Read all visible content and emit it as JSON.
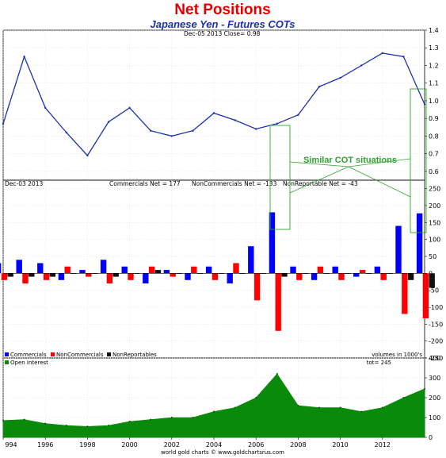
{
  "chart_data": {
    "type": "line",
    "title": "Net Positions",
    "subtitle": "Japanese Yen - Futures COTs",
    "x": [
      1994,
      1995,
      1996,
      1997,
      1998,
      1999,
      2000,
      2001,
      2002,
      2003,
      2004,
      2005,
      2006,
      2007,
      2008,
      2009,
      2010,
      2011,
      2012,
      2013,
      2014
    ],
    "x_tick_labels": [
      "994",
      "1996",
      "1998",
      "2000",
      "2002",
      "2004",
      "2006",
      "2008",
      "2010",
      "2012"
    ],
    "xlim": [
      1994,
      2014
    ],
    "panels": [
      {
        "name": "price",
        "header": "Dec-05 2013   Close= 0.98",
        "ylim": [
          0.55,
          1.4
        ],
        "yticks": [
          0.6,
          0.7,
          0.8,
          0.9,
          1.0,
          1.1,
          1.2,
          1.3,
          1.4
        ],
        "ytick_labels": [
          "0.6",
          "0.7",
          "0.8",
          "0.9",
          "1.0",
          "1.1",
          "1.2",
          "1.3",
          "1.4"
        ],
        "series": [
          {
            "color": "#1a2fb4",
            "values": [
              0.87,
              1.25,
              0.96,
              0.82,
              0.69,
              0.88,
              0.96,
              0.83,
              0.8,
              0.83,
              0.93,
              0.89,
              0.84,
              0.87,
              0.92,
              1.08,
              1.13,
              1.2,
              1.27,
              1.25,
              0.98
            ]
          }
        ]
      },
      {
        "name": "net-positions",
        "header_left": "Dec-03 2013",
        "header_items": [
          "Commercials Net = 177",
          "NonCommercials Net = -133",
          "NonReportable Net = -43"
        ],
        "ylim": [
          -250,
          275
        ],
        "yticks": [
          -250,
          -200,
          -150,
          -100,
          -50,
          0,
          50,
          100,
          150,
          200,
          250
        ],
        "ytick_labels": [
          "-250",
          "-200",
          "-150",
          "-100",
          "-50",
          "0",
          "50",
          "100",
          "150",
          "200",
          "250"
        ],
        "legend": [
          "Commercials",
          "NonCommercials",
          "NonReportables"
        ],
        "legend_placement": "bottom-left",
        "units_note": "volumes in 1000's",
        "series": [
          {
            "name": "Commercials",
            "color": "#0000ff",
            "values": [
              30,
              40,
              30,
              -20,
              10,
              40,
              20,
              -30,
              10,
              -20,
              20,
              -30,
              80,
              180,
              20,
              -20,
              20,
              -10,
              20,
              140,
              177
            ]
          },
          {
            "name": "NonCommercials",
            "color": "#ff0000",
            "values": [
              -20,
              -30,
              -20,
              20,
              -10,
              -30,
              -20,
              20,
              -10,
              20,
              -20,
              30,
              -80,
              -170,
              -20,
              20,
              -20,
              10,
              -20,
              -120,
              -133
            ]
          },
          {
            "name": "NonReportables",
            "color": "#111111",
            "values": [
              -10,
              -10,
              -10,
              0,
              0,
              -10,
              0,
              10,
              0,
              0,
              0,
              0,
              0,
              -10,
              0,
              0,
              0,
              0,
              0,
              -20,
              -43
            ]
          }
        ]
      },
      {
        "name": "open-interest",
        "ylim": [
          0,
          400
        ],
        "yticks": [
          0,
          100,
          200,
          300,
          400
        ],
        "ytick_labels": [
          "0",
          "100",
          "200",
          "300",
          "400"
        ],
        "legend": [
          "Open Interest"
        ],
        "legend_placement": "top-left",
        "header_right": "tot= 245",
        "series": [
          {
            "name": "Open Interest",
            "color": "#0a8a0a",
            "values": [
              85,
              90,
              70,
              60,
              55,
              60,
              80,
              90,
              100,
              100,
              130,
              150,
              200,
              320,
              160,
              150,
              150,
              130,
              150,
              200,
              245
            ]
          }
        ]
      }
    ],
    "annotations": [
      {
        "text": "Similar COT situations",
        "color": "#2fa52f"
      }
    ],
    "footer": "world gold charts © www.goldchartsrus.com"
  }
}
